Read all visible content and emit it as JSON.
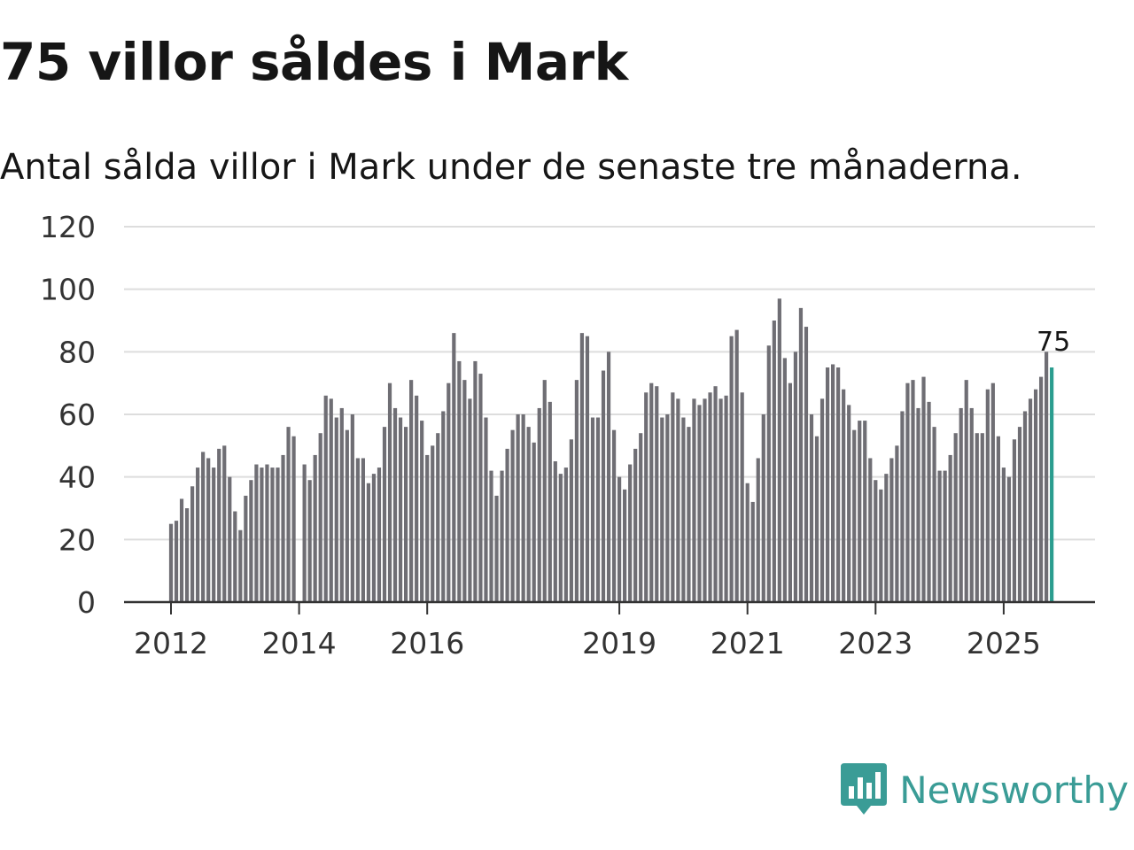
{
  "title": "75 villor såldes i Mark",
  "subtitle": "Antal sålda villor i Mark under de senaste tre månaderna.",
  "brand": {
    "name": "Newsworthy",
    "icon": "newsworthy-logo-icon",
    "color": "#3a9c96"
  },
  "colors": {
    "bar": "#6f6e74",
    "highlight": "#2a9d8f",
    "grid": "#dddddd",
    "axis": "#333333"
  },
  "chart_data": {
    "type": "bar",
    "title": "75 villor såldes i Mark",
    "subtitle": "Antal sålda villor i Mark under de senaste tre månaderna.",
    "xlabel": "",
    "ylabel": "",
    "ylim": [
      0,
      120
    ],
    "yticks": [
      0,
      20,
      40,
      60,
      80,
      100,
      120
    ],
    "grid": true,
    "legend": "none",
    "start": "2012-01",
    "xticks": [
      {
        "label": "2012",
        "index": 0
      },
      {
        "label": "2014",
        "index": 24
      },
      {
        "label": "2016",
        "index": 48
      },
      {
        "label": "2019",
        "index": 84
      },
      {
        "label": "2021",
        "index": 108
      },
      {
        "label": "2023",
        "index": 132
      },
      {
        "label": "2025",
        "index": 156
      }
    ],
    "series": [
      {
        "name": "Antal sålda villor (rullande tre månader)",
        "values": [
          25,
          26,
          33,
          30,
          37,
          43,
          48,
          46,
          43,
          49,
          50,
          40,
          29,
          23,
          34,
          39,
          44,
          43,
          44,
          43,
          43,
          47,
          56,
          53,
          0,
          44,
          39,
          47,
          54,
          66,
          65,
          59,
          62,
          55,
          60,
          46,
          46,
          38,
          41,
          43,
          56,
          70,
          62,
          59,
          56,
          71,
          66,
          58,
          47,
          50,
          54,
          61,
          70,
          86,
          77,
          71,
          65,
          77,
          73,
          59,
          42,
          34,
          42,
          49,
          55,
          60,
          60,
          56,
          51,
          62,
          71,
          64,
          45,
          41,
          43,
          52,
          71,
          86,
          85,
          59,
          59,
          74,
          80,
          55,
          40,
          36,
          44,
          49,
          54,
          67,
          70,
          69,
          59,
          60,
          67,
          65,
          59,
          56,
          65,
          63,
          65,
          67,
          69,
          65,
          66,
          85,
          87,
          67,
          38,
          32,
          46,
          60,
          82,
          90,
          97,
          78,
          70,
          80,
          94,
          88,
          60,
          53,
          65,
          75,
          76,
          75,
          68,
          63,
          55,
          58,
          58,
          46,
          39,
          36,
          41,
          46,
          50,
          61,
          70,
          71,
          62,
          72,
          64,
          56,
          42,
          42,
          47,
          54,
          62,
          71,
          62,
          54,
          54,
          68,
          70,
          53,
          43,
          40,
          52,
          56,
          61,
          65,
          68,
          72,
          80,
          75
        ]
      }
    ],
    "highlight_last": true,
    "last_value_label": "75"
  }
}
